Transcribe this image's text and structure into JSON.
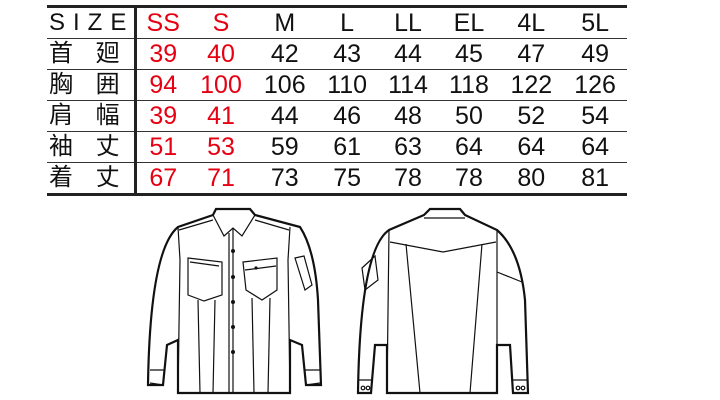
{
  "header": {
    "label": "SIZE",
    "sizes": [
      "SS",
      "S",
      "M",
      "L",
      "LL",
      "EL",
      "4L",
      "5L"
    ]
  },
  "rows": [
    {
      "label": "首 廻",
      "values": [
        "39",
        "40",
        "42",
        "43",
        "44",
        "45",
        "47",
        "49"
      ]
    },
    {
      "label": "胸 囲",
      "values": [
        "94",
        "100",
        "106",
        "110",
        "114",
        "118",
        "122",
        "126"
      ]
    },
    {
      "label": "肩 幅",
      "values": [
        "39",
        "41",
        "44",
        "46",
        "48",
        "50",
        "52",
        "54"
      ]
    },
    {
      "label": "袖 丈",
      "values": [
        "51",
        "53",
        "59",
        "61",
        "63",
        "64",
        "64",
        "64"
      ]
    },
    {
      "label": "着 丈",
      "values": [
        "67",
        "71",
        "73",
        "75",
        "78",
        "78",
        "80",
        "81"
      ]
    }
  ],
  "highlight_sizes": [
    "SS",
    "S"
  ],
  "colors": {
    "highlight": "#e60012",
    "text": "#111111"
  }
}
